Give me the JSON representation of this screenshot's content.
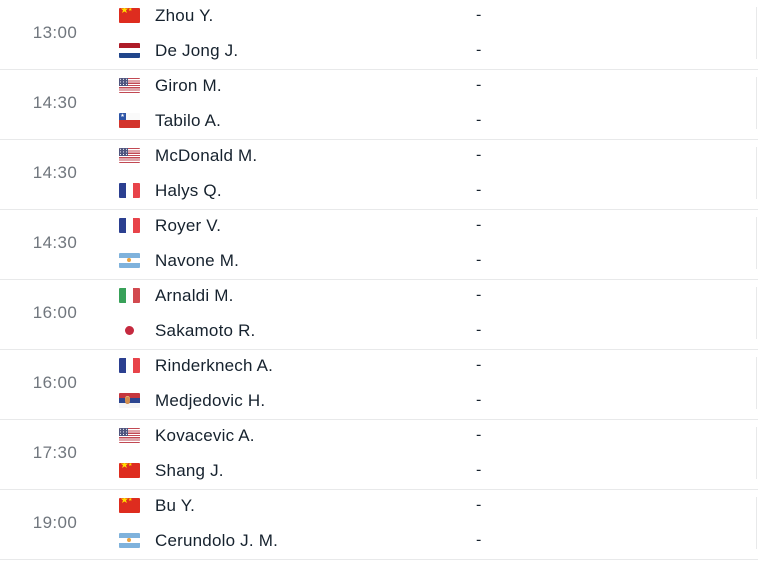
{
  "colors": {
    "background": "#FFFFFF",
    "time_text": "#70767D",
    "player_text": "#16222E",
    "divider": "#E8E9EA"
  },
  "matches": [
    {
      "time": "13:00",
      "players": [
        {
          "country": "China",
          "flag": "cn",
          "name": "Zhou Y.",
          "score": "-"
        },
        {
          "country": "Netherlands",
          "flag": "nl",
          "name": "De Jong J.",
          "score": "-"
        }
      ]
    },
    {
      "time": "14:30",
      "players": [
        {
          "country": "USA",
          "flag": "us",
          "name": "Giron M.",
          "score": "-"
        },
        {
          "country": "Chile",
          "flag": "cl",
          "name": "Tabilo A.",
          "score": "-"
        }
      ]
    },
    {
      "time": "14:30",
      "players": [
        {
          "country": "USA",
          "flag": "us",
          "name": "McDonald M.",
          "score": "-"
        },
        {
          "country": "France",
          "flag": "fr",
          "name": "Halys Q.",
          "score": "-"
        }
      ]
    },
    {
      "time": "14:30",
      "players": [
        {
          "country": "France",
          "flag": "fr",
          "name": "Royer V.",
          "score": "-"
        },
        {
          "country": "Argentina",
          "flag": "ar",
          "name": "Navone M.",
          "score": "-"
        }
      ]
    },
    {
      "time": "16:00",
      "players": [
        {
          "country": "Italy",
          "flag": "it",
          "name": "Arnaldi M.",
          "score": "-"
        },
        {
          "country": "Japan",
          "flag": "jp",
          "name": "Sakamoto R.",
          "score": "-"
        }
      ]
    },
    {
      "time": "16:00",
      "players": [
        {
          "country": "France",
          "flag": "fr",
          "name": "Rinderknech A.",
          "score": "-"
        },
        {
          "country": "Serbia",
          "flag": "rs",
          "name": "Medjedovic H.",
          "score": "-"
        }
      ]
    },
    {
      "time": "17:30",
      "players": [
        {
          "country": "USA",
          "flag": "us",
          "name": "Kovacevic A.",
          "score": "-"
        },
        {
          "country": "China",
          "flag": "cn",
          "name": "Shang J.",
          "score": "-"
        }
      ]
    },
    {
      "time": "19:00",
      "players": [
        {
          "country": "China",
          "flag": "cn",
          "name": "Bu Y.",
          "score": "-"
        },
        {
          "country": "Argentina",
          "flag": "ar",
          "name": "Cerundolo J. M.",
          "score": "-"
        }
      ]
    }
  ]
}
